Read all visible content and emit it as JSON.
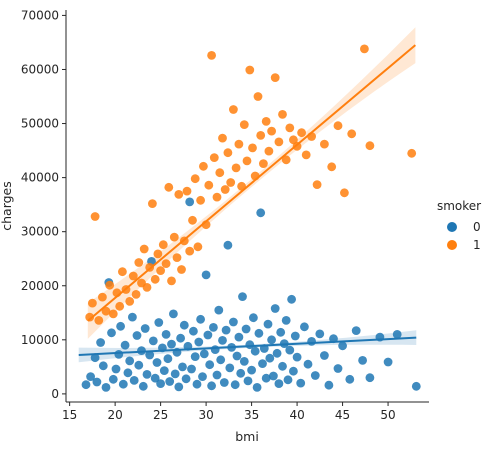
{
  "chart_data": {
    "type": "scatter",
    "title": "",
    "xlabel": "bmi",
    "ylabel": "charges",
    "xlim": [
      14.6,
      54.5
    ],
    "ylim": [
      -1500,
      71000
    ],
    "xticks": [
      15,
      20,
      25,
      30,
      35,
      40,
      45,
      50
    ],
    "yticks": [
      0,
      10000,
      20000,
      30000,
      40000,
      50000,
      60000,
      70000
    ],
    "grid": false,
    "legend": {
      "title": "smoker",
      "placement": "right"
    },
    "series": [
      {
        "name": "0",
        "color": "#1f77b4",
        "regression": {
          "x": [
            16.0,
            53.1
          ],
          "y": [
            7200,
            10400
          ],
          "ci_band": true
        },
        "points": [
          [
            16.8,
            1700
          ],
          [
            17.3,
            3200
          ],
          [
            17.8,
            6700
          ],
          [
            18.0,
            2200
          ],
          [
            18.4,
            9500
          ],
          [
            18.7,
            5200
          ],
          [
            19.0,
            1200
          ],
          [
            19.3,
            20600
          ],
          [
            19.6,
            11300
          ],
          [
            19.8,
            2700
          ],
          [
            20.1,
            4600
          ],
          [
            20.4,
            7300
          ],
          [
            20.6,
            12500
          ],
          [
            20.9,
            1800
          ],
          [
            21.1,
            9000
          ],
          [
            21.4,
            3900
          ],
          [
            21.6,
            6100
          ],
          [
            21.9,
            14200
          ],
          [
            22.1,
            2500
          ],
          [
            22.4,
            10800
          ],
          [
            22.6,
            5300
          ],
          [
            22.9,
            8000
          ],
          [
            23.1,
            1400
          ],
          [
            23.3,
            12100
          ],
          [
            23.5,
            3600
          ],
          [
            23.8,
            7200
          ],
          [
            24.0,
            24500
          ],
          [
            24.2,
            9800
          ],
          [
            24.4,
            2900
          ],
          [
            24.6,
            5800
          ],
          [
            24.8,
            13200
          ],
          [
            25.0,
            1900
          ],
          [
            25.2,
            8500
          ],
          [
            25.4,
            4300
          ],
          [
            25.6,
            11000
          ],
          [
            25.8,
            6500
          ],
          [
            26.0,
            2300
          ],
          [
            26.2,
            9200
          ],
          [
            26.4,
            14800
          ],
          [
            26.6,
            3700
          ],
          [
            26.8,
            7700
          ],
          [
            27.0,
            1300
          ],
          [
            27.2,
            10300
          ],
          [
            27.4,
            5000
          ],
          [
            27.6,
            12700
          ],
          [
            27.8,
            2800
          ],
          [
            28.0,
            8800
          ],
          [
            28.2,
            35500
          ],
          [
            28.4,
            4600
          ],
          [
            28.6,
            11600
          ],
          [
            28.8,
            6900
          ],
          [
            29.0,
            1800
          ],
          [
            29.2,
            9600
          ],
          [
            29.4,
            13800
          ],
          [
            29.6,
            3200
          ],
          [
            29.8,
            7400
          ],
          [
            30.0,
            22000
          ],
          [
            30.2,
            10900
          ],
          [
            30.4,
            5400
          ],
          [
            30.6,
            1500
          ],
          [
            30.8,
            12300
          ],
          [
            31.0,
            8200
          ],
          [
            31.2,
            3500
          ],
          [
            31.4,
            15500
          ],
          [
            31.6,
            6300
          ],
          [
            31.8,
            9900
          ],
          [
            32.0,
            2100
          ],
          [
            32.2,
            11800
          ],
          [
            32.4,
            27500
          ],
          [
            32.6,
            4800
          ],
          [
            32.8,
            8600
          ],
          [
            33.0,
            13300
          ],
          [
            33.2,
            1700
          ],
          [
            33.4,
            7000
          ],
          [
            33.6,
            10500
          ],
          [
            33.8,
            3800
          ],
          [
            34.0,
            18000
          ],
          [
            34.2,
            6000
          ],
          [
            34.4,
            12000
          ],
          [
            34.6,
            2400
          ],
          [
            34.8,
            9100
          ],
          [
            35.0,
            4400
          ],
          [
            35.2,
            14100
          ],
          [
            35.4,
            7900
          ],
          [
            35.6,
            1200
          ],
          [
            35.8,
            11200
          ],
          [
            36.0,
            33500
          ],
          [
            36.2,
            5600
          ],
          [
            36.4,
            8400
          ],
          [
            36.6,
            2900
          ],
          [
            36.8,
            12900
          ],
          [
            37.0,
            6600
          ],
          [
            37.2,
            10000
          ],
          [
            37.4,
            3300
          ],
          [
            37.6,
            15800
          ],
          [
            37.8,
            7500
          ],
          [
            38.0,
            1900
          ],
          [
            38.2,
            11400
          ],
          [
            38.4,
            5100
          ],
          [
            38.6,
            9300
          ],
          [
            38.8,
            13600
          ],
          [
            39.0,
            2600
          ],
          [
            39.2,
            8100
          ],
          [
            39.4,
            17500
          ],
          [
            39.6,
            4200
          ],
          [
            39.8,
            10700
          ],
          [
            40.0,
            6800
          ],
          [
            40.4,
            2000
          ],
          [
            40.8,
            12400
          ],
          [
            41.2,
            5500
          ],
          [
            41.6,
            9700
          ],
          [
            42.0,
            3400
          ],
          [
            42.5,
            11100
          ],
          [
            43.0,
            7100
          ],
          [
            43.5,
            1600
          ],
          [
            44.0,
            10200
          ],
          [
            44.5,
            4700
          ],
          [
            45.0,
            8900
          ],
          [
            45.8,
            2700
          ],
          [
            46.5,
            11700
          ],
          [
            47.2,
            6200
          ],
          [
            48.0,
            3000
          ],
          [
            49.1,
            10500
          ],
          [
            50.0,
            5900
          ],
          [
            51.0,
            11000
          ],
          [
            53.1,
            1400
          ]
        ]
      },
      {
        "name": "1",
        "color": "#ff7f0e",
        "regression": {
          "x": [
            17.0,
            53.0
          ],
          "y": [
            13500,
            64500
          ],
          "ci_band": true
        },
        "points": [
          [
            17.2,
            14200
          ],
          [
            17.5,
            16800
          ],
          [
            17.8,
            32800
          ],
          [
            18.2,
            13600
          ],
          [
            18.6,
            17900
          ],
          [
            19.0,
            15300
          ],
          [
            19.4,
            20100
          ],
          [
            19.8,
            14800
          ],
          [
            20.2,
            18700
          ],
          [
            20.5,
            16200
          ],
          [
            20.8,
            22600
          ],
          [
            21.2,
            19300
          ],
          [
            21.6,
            17100
          ],
          [
            22.0,
            21800
          ],
          [
            22.3,
            18400
          ],
          [
            22.6,
            24300
          ],
          [
            22.9,
            20500
          ],
          [
            23.2,
            26800
          ],
          [
            23.5,
            19700
          ],
          [
            23.8,
            23400
          ],
          [
            24.1,
            35200
          ],
          [
            24.4,
            21200
          ],
          [
            24.7,
            25900
          ],
          [
            25.0,
            22800
          ],
          [
            25.3,
            27600
          ],
          [
            25.6,
            24100
          ],
          [
            25.9,
            38200
          ],
          [
            26.2,
            20900
          ],
          [
            26.5,
            29000
          ],
          [
            26.8,
            25200
          ],
          [
            27.0,
            36900
          ],
          [
            27.3,
            23000
          ],
          [
            27.6,
            28300
          ],
          [
            27.9,
            37500
          ],
          [
            28.2,
            26400
          ],
          [
            28.5,
            32100
          ],
          [
            28.8,
            39800
          ],
          [
            29.1,
            27200
          ],
          [
            29.4,
            35800
          ],
          [
            29.7,
            42100
          ],
          [
            30.0,
            31300
          ],
          [
            30.3,
            38600
          ],
          [
            30.6,
            62600
          ],
          [
            30.9,
            43700
          ],
          [
            31.2,
            36400
          ],
          [
            31.5,
            40900
          ],
          [
            31.8,
            47300
          ],
          [
            32.1,
            37800
          ],
          [
            32.4,
            44600
          ],
          [
            32.7,
            39100
          ],
          [
            33.0,
            52600
          ],
          [
            33.3,
            41800
          ],
          [
            33.6,
            46200
          ],
          [
            33.9,
            38400
          ],
          [
            34.2,
            49800
          ],
          [
            34.5,
            43100
          ],
          [
            34.8,
            59900
          ],
          [
            35.1,
            45500
          ],
          [
            35.4,
            40300
          ],
          [
            35.7,
            55000
          ],
          [
            36.0,
            47800
          ],
          [
            36.3,
            42600
          ],
          [
            36.6,
            50400
          ],
          [
            36.9,
            44900
          ],
          [
            37.2,
            48600
          ],
          [
            37.6,
            58500
          ],
          [
            38.0,
            46600
          ],
          [
            38.4,
            51700
          ],
          [
            38.8,
            43300
          ],
          [
            39.2,
            49200
          ],
          [
            39.6,
            47000
          ],
          [
            40.0,
            45800
          ],
          [
            40.5,
            48300
          ],
          [
            41.0,
            44200
          ],
          [
            41.6,
            47600
          ],
          [
            42.2,
            38700
          ],
          [
            43.0,
            46200
          ],
          [
            43.8,
            42000
          ],
          [
            44.5,
            49600
          ],
          [
            45.2,
            37200
          ],
          [
            46.0,
            48100
          ],
          [
            47.4,
            63800
          ],
          [
            48.0,
            45900
          ],
          [
            52.6,
            44500
          ]
        ]
      }
    ]
  }
}
